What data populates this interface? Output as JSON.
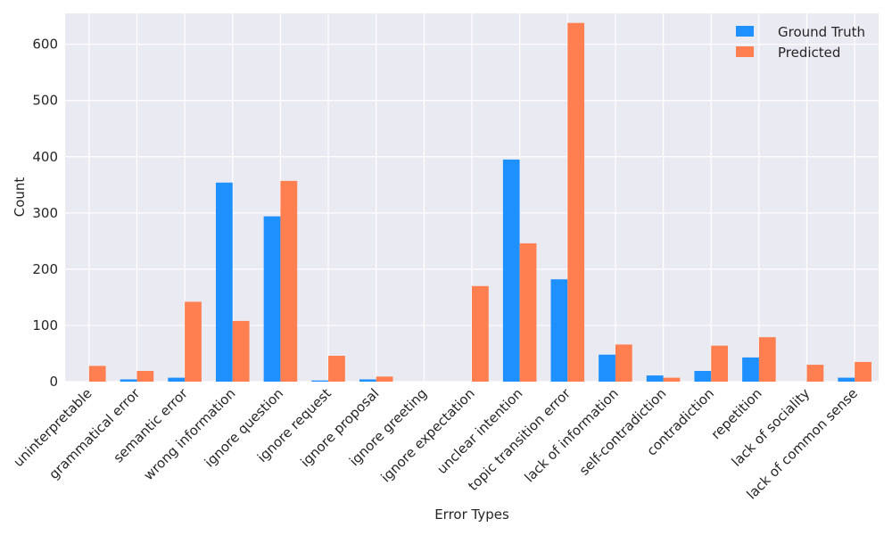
{
  "chart_data": {
    "type": "bar",
    "xlabel": "Error Types",
    "ylabel": "Count",
    "ylim": [
      0,
      655
    ],
    "yticks": [
      0,
      100,
      200,
      300,
      400,
      500,
      600
    ],
    "grid": true,
    "legend_position": "top-right",
    "categories": [
      "uninterpretable",
      "grammatical error",
      "semantic error",
      "wrong information",
      "ignore question",
      "ignore request",
      "ignore proposal",
      "ignore greeting",
      "ignore expectation",
      "unclear intention",
      "topic transition error",
      "lack of information",
      "self-contradiction",
      "contradiction",
      "repetition",
      "lack of sociality",
      "lack of common sense"
    ],
    "series": [
      {
        "name": "Ground Truth",
        "color": "#1e90ff",
        "values": [
          0,
          4,
          7,
          354,
          294,
          2,
          4,
          0,
          0,
          395,
          182,
          48,
          11,
          19,
          43,
          0,
          7
        ]
      },
      {
        "name": "Predicted",
        "color": "#ff7f50",
        "values": [
          28,
          19,
          142,
          108,
          357,
          46,
          9,
          0,
          170,
          246,
          638,
          66,
          7,
          64,
          79,
          30,
          35
        ]
      }
    ]
  }
}
